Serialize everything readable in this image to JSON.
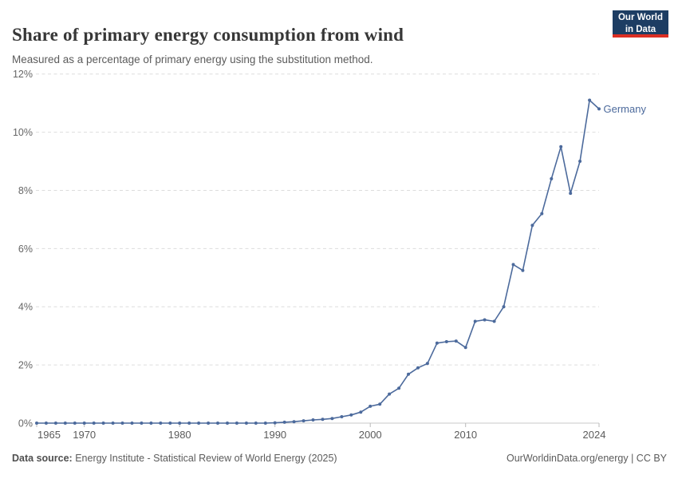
{
  "header": {
    "title": "Share of primary energy consumption from wind",
    "subtitle": "Measured as a percentage of primary energy using the substitution method.",
    "logo": {
      "line1": "Our World",
      "line2": "in Data"
    }
  },
  "footer": {
    "source_label": "Data source:",
    "source_text": " Energy Institute - Statistical Review of World Energy (2025)",
    "attribution": "OurWorldinData.org/energy | CC BY"
  },
  "colors": {
    "series_blue": "#4C6A9C",
    "logo_navy": "#1d3d63",
    "logo_red": "#dc2f23",
    "gridline": "#dddddd",
    "axis_line": "#c8c8c8",
    "tick_mark": "#b9b9b9",
    "y_label": "#666666",
    "x_label": "#5b5b5b"
  },
  "chart_data": {
    "type": "line",
    "title": "Share of primary energy consumption from wind",
    "subtitle": "Measured as a percentage of primary energy using the substitution method.",
    "xlabel": "",
    "ylabel": "",
    "xlim": [
      1965,
      2024
    ],
    "ylim": [
      0,
      12
    ],
    "x_ticks": [
      1965,
      1970,
      1980,
      1990,
      2000,
      2010,
      2024
    ],
    "y_ticks": [
      0,
      2,
      4,
      6,
      8,
      10,
      12
    ],
    "y_tick_suffix": "%",
    "grid": "dashed-horizontal",
    "legend_position": "end-of-line-label",
    "series": [
      {
        "name": "Germany",
        "color": "#4C6A9C",
        "x": [
          1965,
          1966,
          1967,
          1968,
          1969,
          1970,
          1971,
          1972,
          1973,
          1974,
          1975,
          1976,
          1977,
          1978,
          1979,
          1980,
          1981,
          1982,
          1983,
          1984,
          1985,
          1986,
          1987,
          1988,
          1989,
          1990,
          1991,
          1992,
          1993,
          1994,
          1995,
          1996,
          1997,
          1998,
          1999,
          2000,
          2001,
          2002,
          2003,
          2004,
          2005,
          2006,
          2007,
          2008,
          2009,
          2010,
          2011,
          2012,
          2013,
          2014,
          2015,
          2016,
          2017,
          2018,
          2019,
          2020,
          2021,
          2022,
          2023,
          2024
        ],
        "values": [
          0,
          0,
          0,
          0,
          0,
          0,
          0,
          0,
          0,
          0,
          0,
          0,
          0,
          0,
          0,
          0,
          0,
          0,
          0,
          0,
          0,
          0,
          0,
          0,
          0,
          0.01,
          0.03,
          0.05,
          0.08,
          0.11,
          0.13,
          0.16,
          0.22,
          0.28,
          0.38,
          0.58,
          0.65,
          1.0,
          1.2,
          1.68,
          1.9,
          2.05,
          2.75,
          2.8,
          2.82,
          2.6,
          3.5,
          3.55,
          3.5,
          4.0,
          5.45,
          5.25,
          6.8,
          7.2,
          8.4,
          9.5,
          7.9,
          9.0,
          11.1,
          10.8
        ]
      }
    ]
  }
}
